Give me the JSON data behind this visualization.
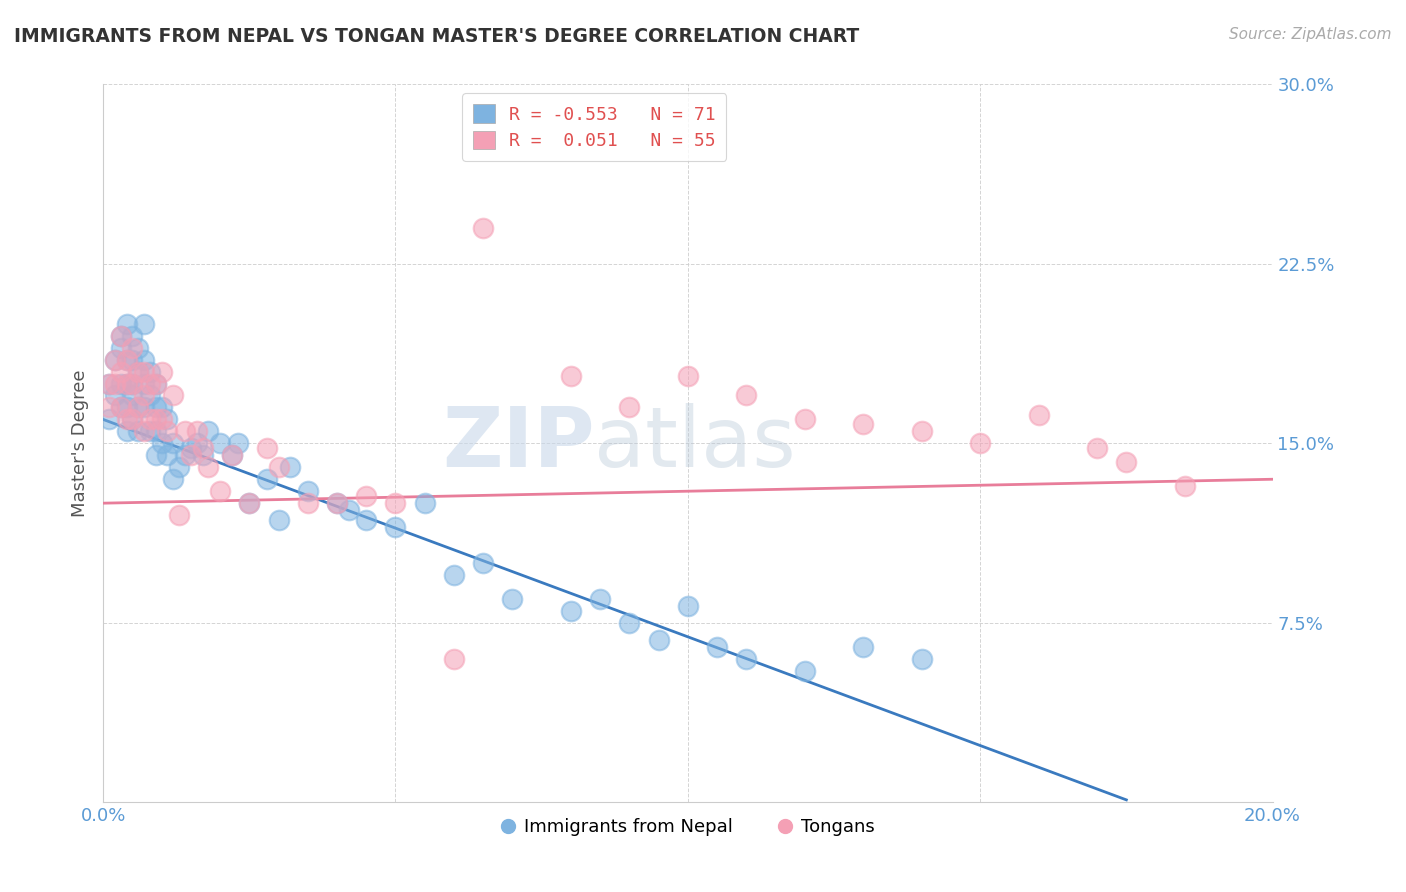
{
  "title": "IMMIGRANTS FROM NEPAL VS TONGAN MASTER'S DEGREE CORRELATION CHART",
  "source_text": "Source: ZipAtlas.com",
  "ylabel": "Master's Degree",
  "xlim": [
    0.0,
    0.2
  ],
  "ylim": [
    0.0,
    0.3
  ],
  "xticks": [
    0.0,
    0.05,
    0.1,
    0.15,
    0.2
  ],
  "yticks": [
    0.0,
    0.075,
    0.15,
    0.225,
    0.3
  ],
  "xtick_labels": [
    "0.0%",
    "",
    "",
    "",
    "20.0%"
  ],
  "ytick_labels": [
    "",
    "7.5%",
    "15.0%",
    "22.5%",
    "30.0%"
  ],
  "nepal_color": "#7eb3e0",
  "tongan_color": "#f4a0b5",
  "nepal_line_color": "#3a7abf",
  "tongan_line_color": "#e87d9a",
  "legend_label_nepal": "Immigrants from Nepal",
  "legend_label_tongan": "Tongans",
  "watermark_zip": "ZIP",
  "watermark_atlas": "atlas",
  "tick_color": "#5b9bd5",
  "nepal_x": [
    0.001,
    0.001,
    0.002,
    0.002,
    0.003,
    0.003,
    0.003,
    0.003,
    0.004,
    0.004,
    0.004,
    0.004,
    0.004,
    0.005,
    0.005,
    0.005,
    0.005,
    0.005,
    0.006,
    0.006,
    0.006,
    0.006,
    0.007,
    0.007,
    0.007,
    0.007,
    0.008,
    0.008,
    0.008,
    0.009,
    0.009,
    0.009,
    0.009,
    0.01,
    0.01,
    0.011,
    0.011,
    0.012,
    0.012,
    0.013,
    0.014,
    0.015,
    0.016,
    0.017,
    0.018,
    0.02,
    0.022,
    0.023,
    0.025,
    0.028,
    0.03,
    0.032,
    0.035,
    0.04,
    0.042,
    0.045,
    0.05,
    0.055,
    0.06,
    0.065,
    0.07,
    0.08,
    0.085,
    0.09,
    0.095,
    0.1,
    0.105,
    0.11,
    0.12,
    0.13,
    0.14
  ],
  "nepal_y": [
    0.16,
    0.175,
    0.17,
    0.185,
    0.195,
    0.19,
    0.175,
    0.165,
    0.2,
    0.185,
    0.175,
    0.165,
    0.155,
    0.195,
    0.185,
    0.175,
    0.17,
    0.16,
    0.19,
    0.18,
    0.165,
    0.155,
    0.2,
    0.185,
    0.175,
    0.165,
    0.18,
    0.17,
    0.155,
    0.175,
    0.165,
    0.155,
    0.145,
    0.165,
    0.15,
    0.16,
    0.145,
    0.15,
    0.135,
    0.14,
    0.145,
    0.148,
    0.15,
    0.145,
    0.155,
    0.15,
    0.145,
    0.15,
    0.125,
    0.135,
    0.118,
    0.14,
    0.13,
    0.125,
    0.122,
    0.118,
    0.115,
    0.125,
    0.095,
    0.1,
    0.085,
    0.08,
    0.085,
    0.075,
    0.068,
    0.082,
    0.065,
    0.06,
    0.055,
    0.065,
    0.06
  ],
  "tongan_x": [
    0.001,
    0.001,
    0.002,
    0.002,
    0.003,
    0.003,
    0.003,
    0.004,
    0.004,
    0.004,
    0.005,
    0.005,
    0.005,
    0.006,
    0.006,
    0.007,
    0.007,
    0.007,
    0.008,
    0.008,
    0.009,
    0.009,
    0.01,
    0.01,
    0.011,
    0.012,
    0.013,
    0.014,
    0.015,
    0.016,
    0.017,
    0.018,
    0.02,
    0.022,
    0.025,
    0.028,
    0.03,
    0.035,
    0.04,
    0.045,
    0.05,
    0.06,
    0.065,
    0.08,
    0.09,
    0.1,
    0.11,
    0.12,
    0.13,
    0.14,
    0.15,
    0.16,
    0.17,
    0.175,
    0.185
  ],
  "tongan_y": [
    0.175,
    0.165,
    0.185,
    0.175,
    0.195,
    0.18,
    0.165,
    0.185,
    0.175,
    0.16,
    0.19,
    0.175,
    0.16,
    0.18,
    0.165,
    0.18,
    0.17,
    0.155,
    0.175,
    0.16,
    0.175,
    0.16,
    0.18,
    0.16,
    0.155,
    0.17,
    0.12,
    0.155,
    0.145,
    0.155,
    0.148,
    0.14,
    0.13,
    0.145,
    0.125,
    0.148,
    0.14,
    0.125,
    0.125,
    0.128,
    0.125,
    0.06,
    0.24,
    0.178,
    0.165,
    0.178,
    0.17,
    0.16,
    0.158,
    0.155,
    0.15,
    0.162,
    0.148,
    0.142,
    0.132
  ]
}
